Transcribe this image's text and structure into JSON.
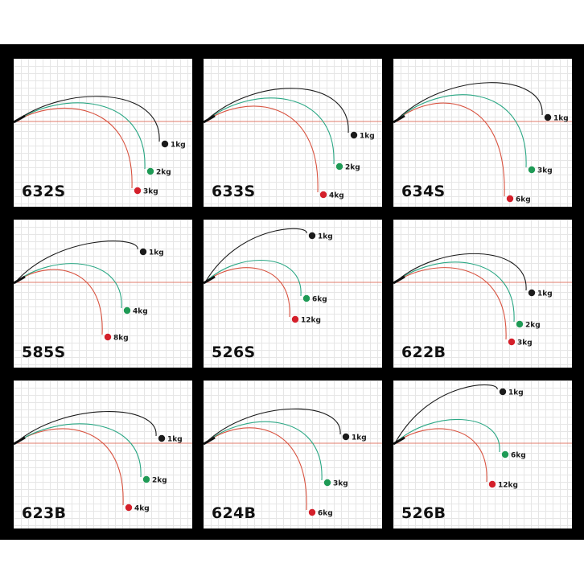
{
  "colors": {
    "background": "#000000",
    "grid": "#e6e6e6",
    "baseline": "#e07b6b",
    "dot_black": "#1a1a1a",
    "dot_green": "#1e9a55",
    "dot_red": "#d41f2a",
    "curve_black": "#1a1a1a",
    "curve_green": "#2aa784",
    "curve_red": "#d8523f"
  },
  "panels": [
    {
      "model": "632S",
      "loads": [
        {
          "label": "1kg",
          "color": "black",
          "tip": [
            181,
            103
          ],
          "height": 38
        },
        {
          "label": "2kg",
          "color": "green",
          "tip": [
            163,
            137
          ],
          "height": 30
        },
        {
          "label": "3kg",
          "color": "red",
          "tip": [
            147,
            161
          ],
          "height": 22
        }
      ]
    },
    {
      "model": "633S",
      "loads": [
        {
          "label": "1kg",
          "color": "black",
          "tip": [
            180,
            92
          ],
          "height": 50
        },
        {
          "label": "2kg",
          "color": "green",
          "tip": [
            162,
            131
          ],
          "height": 38
        },
        {
          "label": "4kg",
          "color": "red",
          "tip": [
            142,
            166
          ],
          "height": 26
        }
      ]
    },
    {
      "model": "634S",
      "loads": [
        {
          "label": "1kg",
          "color": "black",
          "tip": [
            185,
            70
          ],
          "height": 56
        },
        {
          "label": "3kg",
          "color": "green",
          "tip": [
            165,
            135
          ],
          "height": 44
        },
        {
          "label": "6kg",
          "color": "red",
          "tip": [
            138,
            171
          ],
          "height": 32
        }
      ]
    },
    {
      "model": "585S",
      "loads": [
        {
          "label": "1kg",
          "color": "black",
          "tip": [
            154,
            37
          ],
          "height": 52
        },
        {
          "label": "4kg",
          "color": "green",
          "tip": [
            134,
            110
          ],
          "height": 28
        },
        {
          "label": "8kg",
          "color": "red",
          "tip": [
            110,
            143
          ],
          "height": 20
        }
      ]
    },
    {
      "model": "526S",
      "loads": [
        {
          "label": "1kg",
          "color": "black",
          "tip": [
            128,
            17
          ],
          "height": 66
        },
        {
          "label": "6kg",
          "color": "green",
          "tip": [
            121,
            95
          ],
          "height": 32
        },
        {
          "label": "12kg",
          "color": "red",
          "tip": [
            107,
            121
          ],
          "height": 22
        }
      ]
    },
    {
      "model": "622B",
      "loads": [
        {
          "label": "1kg",
          "color": "black",
          "tip": [
            165,
            88
          ],
          "height": 42
        },
        {
          "label": "2kg",
          "color": "green",
          "tip": [
            150,
            127
          ],
          "height": 32
        },
        {
          "label": "3kg",
          "color": "red",
          "tip": [
            140,
            149
          ],
          "height": 24
        }
      ]
    },
    {
      "model": "623B",
      "loads": [
        {
          "label": "1kg",
          "color": "black",
          "tip": [
            177,
            69
          ],
          "height": 44
        },
        {
          "label": "2kg",
          "color": "green",
          "tip": [
            158,
            120
          ],
          "height": 30
        },
        {
          "label": "4kg",
          "color": "red",
          "tip": [
            136,
            155
          ],
          "height": 24
        }
      ]
    },
    {
      "model": "624B",
      "loads": [
        {
          "label": "1kg",
          "color": "black",
          "tip": [
            170,
            67
          ],
          "height": 48
        },
        {
          "label": "3kg",
          "color": "green",
          "tip": [
            147,
            124
          ],
          "height": 34
        },
        {
          "label": "6kg",
          "color": "red",
          "tip": [
            128,
            161
          ],
          "height": 26
        }
      ]
    },
    {
      "model": "526B",
      "loads": [
        {
          "label": "1kg",
          "color": "black",
          "tip": [
            129,
            11
          ],
          "height": 72
        },
        {
          "label": "6kg",
          "color": "green",
          "tip": [
            132,
            89
          ],
          "height": 34
        },
        {
          "label": "12kg",
          "color": "red",
          "tip": [
            116,
            126
          ],
          "height": 22
        }
      ]
    }
  ]
}
